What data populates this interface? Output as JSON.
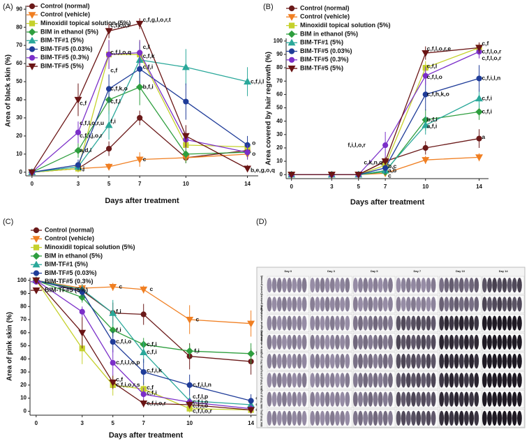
{
  "chart_data": [
    {
      "type": "line",
      "panel": "(A)",
      "xlabel": "Days after treatment",
      "ylabel": "Area of black skin (%)",
      "x": [
        0,
        3,
        5,
        7,
        10,
        14
      ],
      "xlim": [
        -0.4,
        14.7
      ],
      "xticks": [
        0,
        3,
        5,
        7,
        10,
        14
      ],
      "ylim": [
        -2,
        92
      ],
      "yticks": [
        0,
        10,
        20,
        30,
        40,
        50,
        60,
        70,
        80,
        90
      ],
      "legend": "upper left",
      "series": [
        {
          "name": "Control (normal)",
          "color": "#6b1a1a",
          "marker": "circle",
          "values": [
            0,
            2,
            13,
            30,
            8,
            12
          ],
          "errors": [
            0,
            1,
            4,
            4,
            3,
            3
          ]
        },
        {
          "name": "Control (vehicle)",
          "color": "#f07f22",
          "marker": "triangle-down",
          "values": [
            0,
            2,
            3,
            7,
            8,
            10
          ],
          "errors": [
            0,
            1,
            2,
            4,
            2,
            3
          ]
        },
        {
          "name": "Minoxidil topical solution (5%)",
          "color": "#c5d12c",
          "marker": "square",
          "values": [
            0,
            2,
            65,
            65,
            15,
            14
          ],
          "errors": [
            0,
            2,
            8,
            8,
            5,
            4
          ]
        },
        {
          "name": "BIM in ethanol (5%)",
          "color": "#2e9e3e",
          "marker": "diamond",
          "values": [
            0,
            12,
            40,
            47,
            10,
            11
          ],
          "errors": [
            0,
            4,
            8,
            10,
            5,
            4
          ]
        },
        {
          "name": "BIM-TF#1 (5%)",
          "color": "#2aa89a",
          "marker": "triangle-up",
          "values": [
            0,
            3,
            26,
            62,
            58,
            50
          ],
          "errors": [
            0,
            2,
            8,
            10,
            10,
            8
          ]
        },
        {
          "name": "BIM-TF#5 (0.03%)",
          "color": "#1f3c99",
          "marker": "circle",
          "values": [
            0,
            4,
            46,
            57,
            39,
            15
          ],
          "errors": [
            0,
            3,
            8,
            8,
            10,
            5
          ]
        },
        {
          "name": "BIM-TF#5 (0.3%)",
          "color": "#7b2fc9",
          "marker": "circle",
          "values": [
            0,
            22,
            65,
            66,
            18,
            11
          ],
          "errors": [
            0,
            6,
            8,
            7,
            5,
            4
          ]
        },
        {
          "name": "BIM-TF#5 (5%)",
          "color": "#6a1515",
          "marker": "triangle-down",
          "values": [
            0,
            40,
            78,
            82,
            20,
            2
          ],
          "errors": [
            0,
            9,
            4,
            3,
            6,
            2
          ]
        }
      ],
      "annotations": [
        {
          "text": "c,f",
          "x": 3.1,
          "y": 38
        },
        {
          "text": "c,f,l,o,r,u",
          "x": 3.1,
          "y": 27
        },
        {
          "text": "c,f,i,j,o,r",
          "x": 3.1,
          "y": 20
        },
        {
          "text": "a,d,i",
          "x": 3.1,
          "y": 12
        },
        {
          "text": "i,j",
          "x": 3.1,
          "y": 2
        },
        {
          "text": "c,f,i,o,r",
          "x": 5.1,
          "y": 81
        },
        {
          "text": "c,f,l,o,q",
          "x": 5.1,
          "y": 66
        },
        {
          "text": "c,f",
          "x": 5.1,
          "y": 56
        },
        {
          "text": "c,f,k,o",
          "x": 5.1,
          "y": 46
        },
        {
          "text": "c,f,i",
          "x": 5.1,
          "y": 39
        },
        {
          "text": "f,i",
          "x": 5.1,
          "y": 28
        },
        {
          "text": "c,f,g,l,o,r,t",
          "x": 7.2,
          "y": 84
        },
        {
          "text": "c,f",
          "x": 7.2,
          "y": 69
        },
        {
          "text": "c,f,k",
          "x": 7.2,
          "y": 64
        },
        {
          "text": "c,f,i",
          "x": 7.2,
          "y": 58
        },
        {
          "text": "b,f,i",
          "x": 7.2,
          "y": 47
        },
        {
          "text": "c",
          "x": 7.2,
          "y": 7
        },
        {
          "text": "c,f,i,l",
          "x": 14.2,
          "y": 50
        },
        {
          "text": "o",
          "x": 14.3,
          "y": 16
        },
        {
          "text": "o",
          "x": 14.3,
          "y": 10
        },
        {
          "text": "b,e,g,o,q",
          "x": 14.2,
          "y": 1
        }
      ]
    },
    {
      "type": "line",
      "panel": "(B)",
      "xlabel": "Days after treatment",
      "ylabel": "Area covered by hair regrowth (%)",
      "x": [
        0,
        3,
        5,
        7,
        10,
        14
      ],
      "xlim": [
        -0.4,
        14.7
      ],
      "xticks": [
        0,
        3,
        5,
        7,
        10,
        14
      ],
      "ylim": [
        -3,
        102
      ],
      "yticks": [
        0,
        10,
        20,
        30,
        40,
        50,
        60,
        70,
        80,
        90,
        100
      ],
      "legend": "upper left",
      "series": [
        {
          "name": "Control (normal)",
          "color": "#6b1a1a",
          "marker": "circle",
          "values": [
            0,
            0,
            0,
            10,
            20,
            27
          ],
          "errors": [
            0,
            0,
            0,
            3,
            5,
            7
          ]
        },
        {
          "name": "Control (vehicle)",
          "color": "#f07f22",
          "marker": "triangle-down",
          "values": [
            0,
            0,
            0,
            1,
            11,
            13
          ],
          "errors": [
            0,
            0,
            0,
            1,
            3,
            3
          ]
        },
        {
          "name": "Minoxidil topical solution (5%)",
          "color": "#c5d12c",
          "marker": "square",
          "values": [
            0,
            0,
            0,
            7,
            80,
            95
          ],
          "errors": [
            0,
            0,
            0,
            3,
            5,
            3
          ]
        },
        {
          "name": "BIM in ethanol (5%)",
          "color": "#2e9e3e",
          "marker": "diamond",
          "values": [
            0,
            0,
            0,
            2,
            41,
            47
          ],
          "errors": [
            0,
            0,
            0,
            2,
            8,
            6
          ]
        },
        {
          "name": "BIM-TF#1 (5%)",
          "color": "#2aa89a",
          "marker": "triangle-up",
          "values": [
            0,
            0,
            0,
            3,
            37,
            57
          ],
          "errors": [
            0,
            0,
            0,
            2,
            7,
            7
          ]
        },
        {
          "name": "BIM-TF#5 (0.03%)",
          "color": "#1f3c99",
          "marker": "circle",
          "values": [
            0,
            0,
            0,
            5,
            60,
            72
          ],
          "errors": [
            0,
            0,
            0,
            4,
            12,
            10
          ]
        },
        {
          "name": "BIM-TF#5 (0.3%)",
          "color": "#7b2fc9",
          "marker": "circle",
          "values": [
            0,
            0,
            0,
            22,
            74,
            92
          ],
          "errors": [
            0,
            0,
            0,
            10,
            7,
            5
          ]
        },
        {
          "name": "BIM-TF#5 (5%)",
          "color": "#6a1515",
          "marker": "triangle-down",
          "values": [
            0,
            0,
            0,
            10,
            91,
            95
          ],
          "errors": [
            0,
            0,
            0,
            3,
            5,
            4
          ]
        }
      ],
      "annotations": [
        {
          "text": "f,i,l,o,r",
          "x": 4.2,
          "y": 22
        },
        {
          "text": "c,k,n,q",
          "x": 5.4,
          "y": 9
        },
        {
          "text": "b,c",
          "x": 7.2,
          "y": 6
        },
        {
          "text": "a,b",
          "x": 7.2,
          "y": 3
        },
        {
          "text": "c",
          "x": 7.2,
          "y": -1
        },
        {
          "text": "c,f,l,o,r,e",
          "x": 10.1,
          "y": 94
        },
        {
          "text": "c,f,l",
          "x": 10.1,
          "y": 81
        },
        {
          "text": "c,f,l,o",
          "x": 10.1,
          "y": 73
        },
        {
          "text": "c,f,h,k,o",
          "x": 10.1,
          "y": 60
        },
        {
          "text": "b,f,i",
          "x": 10.1,
          "y": 41
        },
        {
          "text": "a,f,i",
          "x": 10.1,
          "y": 36
        },
        {
          "text": "c,f",
          "x": 14.2,
          "y": 98
        },
        {
          "text": "c,f,l,o,r",
          "x": 14.2,
          "y": 92
        },
        {
          "text": "c,f,l,o,r",
          "x": 14.2,
          "y": 87
        },
        {
          "text": "c,f,i,l,n",
          "x": 14.2,
          "y": 72
        },
        {
          "text": "c,f,i",
          "x": 14.2,
          "y": 57
        },
        {
          "text": "c,f,i",
          "x": 14.2,
          "y": 47
        },
        {
          "text": "a",
          "x": 14.2,
          "y": 28
        }
      ]
    },
    {
      "type": "line",
      "panel": "(C)",
      "xlabel": "Days after treatment",
      "ylabel": "Area of pink skin (%)",
      "x": [
        0,
        3,
        5,
        7,
        10,
        14
      ],
      "xlim": [
        -0.4,
        14.7
      ],
      "xticks": [
        0,
        3,
        5,
        7,
        10,
        14
      ],
      "ylim": [
        -3,
        102
      ],
      "yticks": [
        0,
        10,
        20,
        30,
        40,
        50,
        60,
        70,
        80,
        90,
        100
      ],
      "legend": "upper left",
      "series": [
        {
          "name": "Control (normal)",
          "color": "#6b1a1a",
          "marker": "circle",
          "values": [
            100,
            92,
            75,
            74,
            42,
            38
          ],
          "errors": [
            0,
            5,
            8,
            8,
            10,
            10
          ]
        },
        {
          "name": "Control (vehicle)",
          "color": "#f07f22",
          "marker": "triangle-down",
          "values": [
            100,
            94,
            95,
            93,
            70,
            67
          ],
          "errors": [
            0,
            3,
            3,
            3,
            11,
            10
          ]
        },
        {
          "name": "Minoxidil topical solution (5%)",
          "color": "#c5d12c",
          "marker": "square",
          "values": [
            100,
            48,
            20,
            17,
            2,
            1
          ],
          "errors": [
            0,
            12,
            8,
            5,
            3,
            2
          ]
        },
        {
          "name": "BIM in ethanol (5%)",
          "color": "#2e9e3e",
          "marker": "diamond",
          "values": [
            100,
            87,
            62,
            51,
            46,
            44
          ],
          "errors": [
            0,
            4,
            5,
            5,
            5,
            8
          ]
        },
        {
          "name": "BIM-TF#1 (5%)",
          "color": "#2aa89a",
          "marker": "triangle-up",
          "values": [
            100,
            93,
            75,
            45,
            8,
            5
          ],
          "errors": [
            0,
            4,
            10,
            8,
            4,
            4
          ]
        },
        {
          "name": "BIM-TF#5 (0.03%)",
          "color": "#1f3c99",
          "marker": "circle",
          "values": [
            100,
            91,
            53,
            30,
            20,
            8
          ],
          "errors": [
            0,
            4,
            8,
            10,
            8,
            5
          ]
        },
        {
          "name": "BIM-TF#5 (0.3%)",
          "color": "#7b2fc9",
          "marker": "circle",
          "values": [
            100,
            76,
            37,
            13,
            7,
            2
          ],
          "errors": [
            0,
            4,
            10,
            5,
            3,
            3
          ]
        },
        {
          "name": "BIM-TF#5 (5%)",
          "color": "#6a1515",
          "marker": "triangle-down",
          "values": [
            100,
            60,
            22,
            6,
            5,
            1
          ],
          "errors": [
            0,
            12,
            5,
            3,
            3,
            2
          ]
        }
      ],
      "annotations": [
        {
          "text": "c",
          "x": 5.4,
          "y": 95
        },
        {
          "text": "f,i",
          "x": 5.2,
          "y": 76
        },
        {
          "text": "f,i",
          "x": 5.2,
          "y": 62
        },
        {
          "text": "c,f,i,o",
          "x": 5.2,
          "y": 53
        },
        {
          "text": "c,f,i,l,o,p",
          "x": 5.2,
          "y": 37
        },
        {
          "text": "c,f",
          "x": 5.2,
          "y": 24
        },
        {
          "text": "c,f,i,o,r,s",
          "x": 5.2,
          "y": 20
        },
        {
          "text": "c",
          "x": 7.4,
          "y": 93
        },
        {
          "text": "c,f,i",
          "x": 7.2,
          "y": 51
        },
        {
          "text": "c,f,i",
          "x": 7.2,
          "y": 45
        },
        {
          "text": "c,f,i,k",
          "x": 7.2,
          "y": 31
        },
        {
          "text": "c,f",
          "x": 7.2,
          "y": 18
        },
        {
          "text": "c,f,i",
          "x": 7.2,
          "y": 14
        },
        {
          "text": "c,f,i,o,r",
          "x": 7.2,
          "y": 6
        },
        {
          "text": "c",
          "x": 10.4,
          "y": 70
        },
        {
          "text": "f,i",
          "x": 10.3,
          "y": 46
        },
        {
          "text": "c,f,i,l,n",
          "x": 10.2,
          "y": 20
        },
        {
          "text": "c,f,l,p",
          "x": 10.2,
          "y": 11
        },
        {
          "text": "c,f,i,o",
          "x": 10.2,
          "y": 7
        },
        {
          "text": "c,f,i,o",
          "x": 10.2,
          "y": 4
        },
        {
          "text": "c,f,l,o,r",
          "x": 10.2,
          "y": 0
        },
        {
          "text": "c",
          "x": 14.4,
          "y": 67
        },
        {
          "text": "f,i",
          "x": 14.3,
          "y": 44
        },
        {
          "text": "c,f,l",
          "x": 14.3,
          "y": 10
        },
        {
          "text": "c,f,l",
          "x": 14.3,
          "y": 5
        },
        {
          "text": "c,f",
          "x": 14.3,
          "y": 1
        }
      ]
    }
  ],
  "photo_panel": {
    "panel": "(D)",
    "columns": [
      "Day 0",
      "Day 3",
      "Day 5",
      "Day 7",
      "Day 10",
      "Day 14"
    ],
    "rows": [
      "Control (normal)",
      "Control (vehicle)",
      "Minoxidil topical solution (5%)",
      "BIM in ethanol (5%)",
      "BIM-TF#1 (5%)",
      "BIM-TF#5 (0.03%)",
      "BIM-TF#5 (0.3%)",
      "BIM-TF#5 (5%)"
    ]
  }
}
